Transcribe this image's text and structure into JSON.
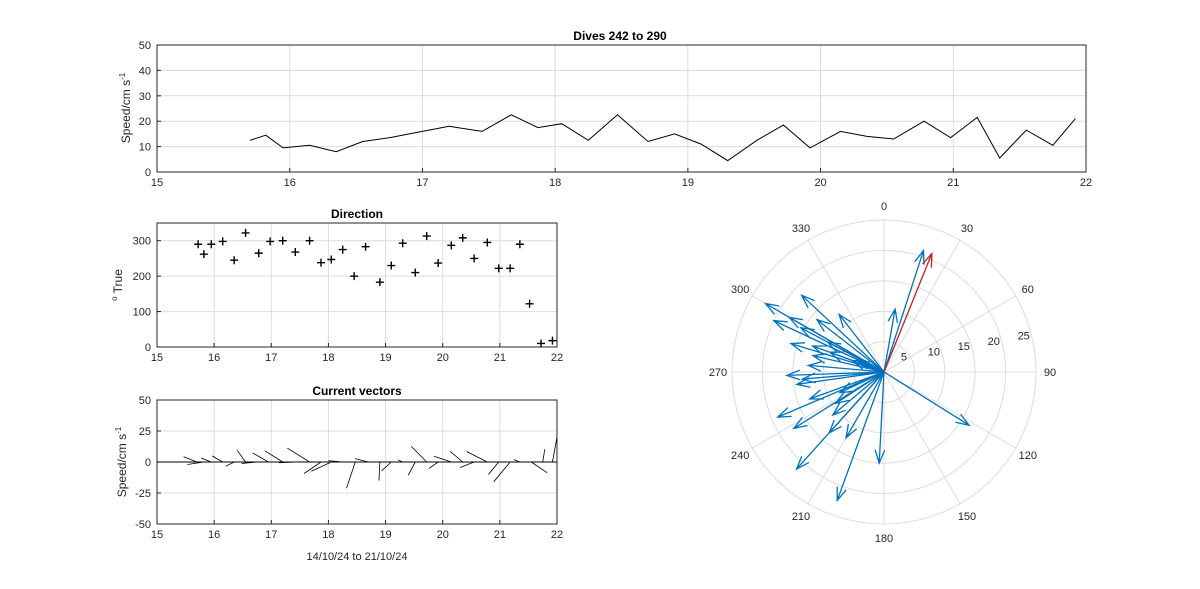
{
  "chart_data": [
    {
      "id": "speed",
      "type": "line",
      "title": "Dives 242 to 290",
      "ylabel": "Speed/cm s",
      "ylabel_sup": "-1",
      "xlim": [
        15,
        22
      ],
      "ylim": [
        0,
        50
      ],
      "xticks": [
        15,
        16,
        17,
        18,
        19,
        20,
        21,
        22
      ],
      "yticks": [
        0,
        10,
        20,
        30,
        40,
        50
      ],
      "grid": true,
      "series": [
        {
          "color": "#000000",
          "x": [
            15.7,
            15.82,
            15.95,
            16.15,
            16.35,
            16.55,
            16.75,
            16.95,
            17.2,
            17.45,
            17.67,
            17.87,
            18.05,
            18.25,
            18.47,
            18.7,
            18.9,
            19.1,
            19.3,
            19.52,
            19.72,
            19.92,
            20.15,
            20.35,
            20.55,
            20.78,
            20.98,
            21.18,
            21.35,
            21.55,
            21.75,
            21.92
          ],
          "y": [
            12.5,
            14.5,
            9.5,
            10.5,
            8,
            12,
            13.5,
            15.5,
            18,
            16,
            22.5,
            17.5,
            19,
            12.5,
            22.5,
            12,
            15,
            11,
            4.5,
            12.5,
            18.5,
            9.5,
            16,
            14,
            13,
            20,
            13.5,
            21.5,
            5.5,
            16.5,
            10.5,
            21
          ]
        }
      ]
    },
    {
      "id": "direction",
      "type": "scatter",
      "title": "Direction",
      "ylabel": "True",
      "ylabel_sup": "o",
      "xlim": [
        15,
        22
      ],
      "ylim": [
        0,
        350
      ],
      "xticks": [
        15,
        16,
        17,
        18,
        19,
        20,
        21,
        22
      ],
      "yticks": [
        0,
        100,
        200,
        300
      ],
      "grid": true,
      "marker": "+",
      "series": [
        {
          "color": "#000000",
          "x": [
            15.72,
            15.82,
            15.95,
            16.15,
            16.35,
            16.55,
            16.78,
            16.98,
            17.2,
            17.42,
            17.67,
            17.87,
            18.05,
            18.25,
            18.45,
            18.65,
            18.9,
            19.1,
            19.3,
            19.52,
            19.72,
            19.92,
            20.15,
            20.35,
            20.55,
            20.78,
            20.98,
            21.18,
            21.35,
            21.52,
            21.72,
            21.92
          ],
          "y": [
            290,
            262,
            290,
            298,
            245,
            322,
            265,
            298,
            300,
            268,
            300,
            238,
            247,
            275,
            200,
            283,
            183,
            230,
            293,
            210,
            313,
            237,
            287,
            308,
            250,
            295,
            222,
            222,
            290,
            122,
            10,
            18
          ]
        }
      ]
    },
    {
      "id": "vectors",
      "type": "vector",
      "title": "Current vectors",
      "xlabel": "14/10/24 to 21/10/24",
      "ylabel": "Speed/cm s",
      "ylabel_sup": "-1",
      "xlim": [
        15,
        22
      ],
      "ylim": [
        -50,
        50
      ],
      "xticks": [
        15,
        16,
        17,
        18,
        19,
        20,
        21,
        22
      ],
      "yticks": [
        -50,
        -25,
        0,
        25,
        50
      ],
      "grid": true
    },
    {
      "id": "polar",
      "type": "polar",
      "theta_ticks": [
        0,
        30,
        60,
        90,
        120,
        150,
        180,
        210,
        240,
        270,
        300,
        330
      ],
      "r_ticks": [
        5,
        10,
        15,
        20,
        25
      ],
      "rlim": [
        0,
        25
      ],
      "theta_zero": "top",
      "theta_direction": "clockwise",
      "vector_color": "#0072bd",
      "mean_color": "#c41e1e",
      "mean_vector": {
        "direction": 22,
        "speed": 21
      }
    }
  ]
}
